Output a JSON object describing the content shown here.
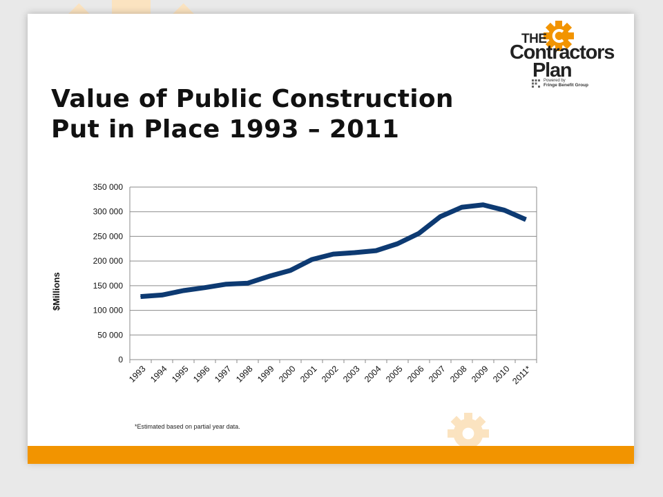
{
  "slide": {
    "title_line1": "Value of Public Construction",
    "title_line2": "Put in Place 1993 – 2011",
    "footnote": "*Estimated based on partial year data.",
    "accent_color": "#f29400",
    "gear_color": "#fbe3c0"
  },
  "logo": {
    "line1": "THE",
    "line2": "Contractors",
    "line3": "Plan",
    "powered_by": "Powered by",
    "company": "Fringe Benefit Group",
    "icon": "gear-c-icon"
  },
  "chart_data": {
    "type": "line",
    "title": "",
    "xlabel": "",
    "ylabel": "$Millions",
    "categories": [
      "1993",
      "1994",
      "1995",
      "1996",
      "1997",
      "1998",
      "1999",
      "2000",
      "2001",
      "2002",
      "2003",
      "2004",
      "2005",
      "2006",
      "2007",
      "2008",
      "2009",
      "2010",
      "2011*"
    ],
    "series": [
      {
        "values": [
          128000,
          131000,
          140000,
          146000,
          153000,
          155000,
          169000,
          181000,
          203000,
          214000,
          217000,
          221000,
          235000,
          256000,
          290000,
          309000,
          314000,
          303000,
          284000
        ]
      }
    ],
    "ylim": [
      0,
      350000
    ],
    "yticks": [
      0,
      50000,
      100000,
      150000,
      200000,
      250000,
      300000,
      350000
    ],
    "ytick_labels": [
      "0",
      "50 000",
      "100 000",
      "150 000",
      "200 000",
      "250 000",
      "300 000",
      "350 000"
    ],
    "grid": true,
    "line_color": "#0d3a72"
  }
}
